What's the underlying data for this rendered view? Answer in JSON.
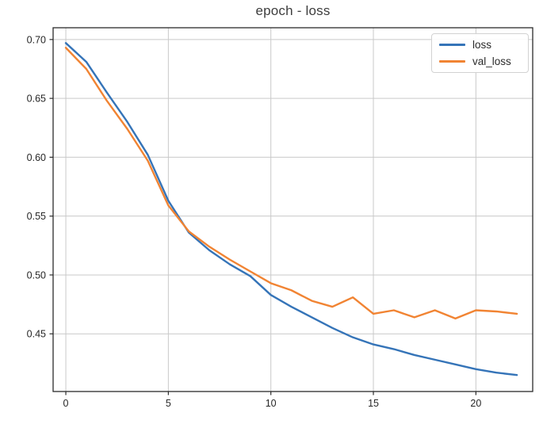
{
  "chart_data": {
    "type": "line",
    "title": "epoch - loss",
    "xlabel": "",
    "ylabel": "",
    "grid": true,
    "legend_position": "upper right",
    "xlim": [
      -0.62,
      22.77
    ],
    "ylim": [
      0.401,
      0.71
    ],
    "x_ticks": [
      0,
      5,
      10,
      15,
      20
    ],
    "x_tick_labels": [
      "0",
      "5",
      "10",
      "15",
      "20"
    ],
    "y_ticks": [
      0.45,
      0.5,
      0.55,
      0.6,
      0.65,
      0.7
    ],
    "y_tick_labels": [
      "0.45",
      "0.50",
      "0.55",
      "0.60",
      "0.65",
      "0.70"
    ],
    "x": [
      0,
      1,
      2,
      3,
      4,
      5,
      6,
      7,
      8,
      9,
      10,
      11,
      12,
      13,
      14,
      15,
      16,
      17,
      18,
      19,
      20,
      21,
      22
    ],
    "series": [
      {
        "name": "loss",
        "color": "#3574b8",
        "values": [
          0.697,
          0.681,
          0.655,
          0.63,
          0.602,
          0.563,
          0.536,
          0.521,
          0.509,
          0.499,
          0.483,
          0.473,
          0.464,
          0.455,
          0.447,
          0.441,
          0.437,
          0.432,
          0.428,
          0.424,
          0.42,
          0.417,
          0.415
        ]
      },
      {
        "name": "val_loss",
        "color": "#f18433",
        "values": [
          0.693,
          0.675,
          0.648,
          0.624,
          0.597,
          0.559,
          0.537,
          0.524,
          0.513,
          0.503,
          0.493,
          0.487,
          0.478,
          0.473,
          0.481,
          0.467,
          0.47,
          0.464,
          0.47,
          0.463,
          0.47,
          0.469,
          0.467
        ]
      }
    ],
    "style": {
      "grid_color": "#c9c9c9",
      "spine_color": "#2b2b2b",
      "tick_label_color": "#262626",
      "line_width": 2.4
    }
  }
}
